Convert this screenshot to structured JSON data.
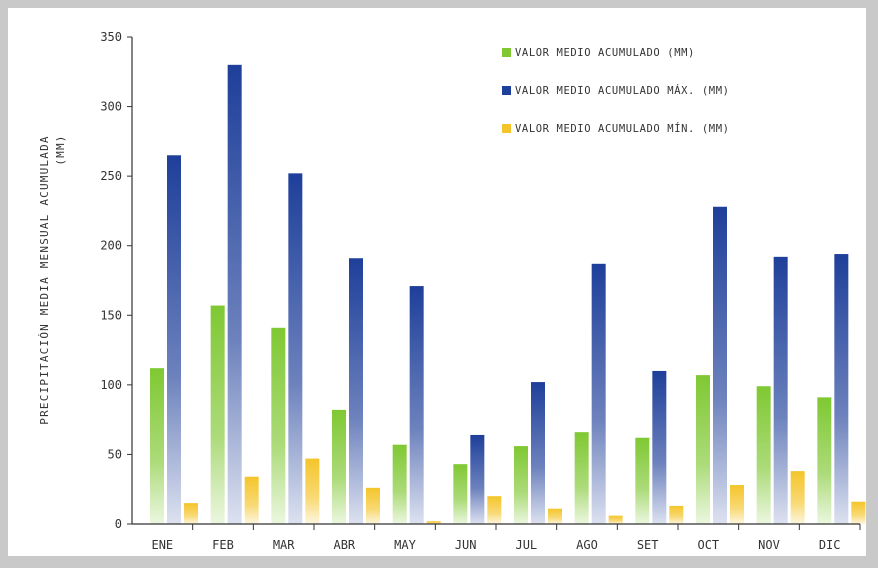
{
  "chart_data": {
    "type": "bar",
    "title": "",
    "xlabel": "",
    "ylabel": "PRECIPITACIÓN MEDIA MENSUAL ACUMULADA (MM)",
    "ylim": [
      0,
      350
    ],
    "yticks": [
      0,
      50,
      100,
      150,
      200,
      250,
      300,
      350
    ],
    "categories": [
      "ENE",
      "FEB",
      "MAR",
      "ABR",
      "MAY",
      "JUN",
      "JUL",
      "AGO",
      "SET",
      "OCT",
      "NOV",
      "DIC"
    ],
    "series": [
      {
        "name": "VALOR MEDIO ACUMULADO (MM)",
        "color": "#7fc832",
        "values": [
          112,
          157,
          141,
          82,
          57,
          43,
          56,
          66,
          62,
          107,
          99,
          91
        ]
      },
      {
        "name": "VALOR MEDIO ACUMULADO MÁX. (MM)",
        "color": "#1e3f9a",
        "values": [
          265,
          330,
          252,
          191,
          171,
          64,
          102,
          187,
          110,
          228,
          192,
          194
        ]
      },
      {
        "name": "VALOR MEDIO ACUMULADO MÍN. (MM)",
        "color": "#f4c52a",
        "values": [
          15,
          34,
          47,
          26,
          2,
          20,
          11,
          6,
          13,
          28,
          38,
          16
        ]
      }
    ],
    "legend_position": "top-right",
    "grid": false
  }
}
